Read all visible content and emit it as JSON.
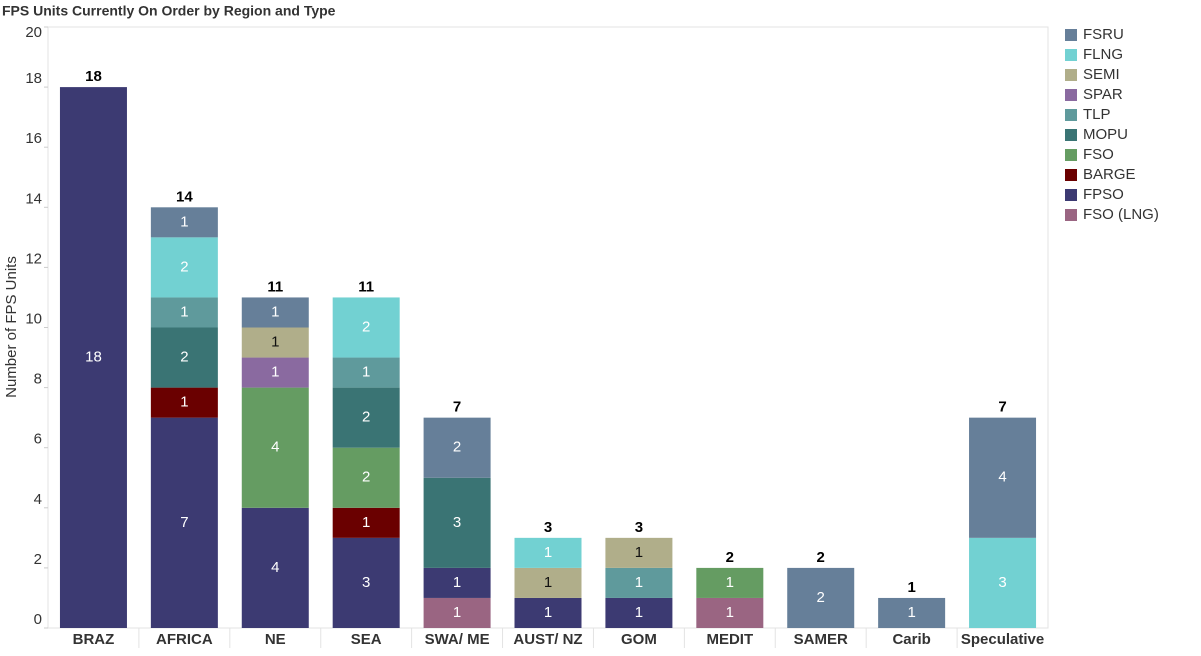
{
  "chart_data": {
    "type": "stacked_bar",
    "title": "FPS Units Currently On Order by Region and Type",
    "y_label": "Number of FPS Units",
    "categories": [
      "BRAZ",
      "AFRICA",
      "NE",
      "SEA",
      "SWA/ ME",
      "AUST/ NZ",
      "GOM",
      "MEDIT",
      "SAMER",
      "Carib",
      "Speculative"
    ],
    "series": [
      {
        "name": "FSRU",
        "color": "#667f99",
        "values": [
          null,
          1,
          1,
          null,
          2,
          null,
          null,
          null,
          2,
          1,
          4
        ]
      },
      {
        "name": "FLNG",
        "color": "#72d1d2",
        "values": [
          null,
          2,
          null,
          2,
          null,
          1,
          null,
          null,
          null,
          null,
          3
        ]
      },
      {
        "name": "SEMI",
        "color": "#b0ae8a",
        "values": [
          null,
          null,
          1,
          null,
          null,
          1,
          1,
          null,
          null,
          null,
          null
        ]
      },
      {
        "name": "SPAR",
        "color": "#8a6aa0",
        "values": [
          null,
          null,
          1,
          null,
          null,
          null,
          null,
          null,
          null,
          null,
          null
        ]
      },
      {
        "name": "TLP",
        "color": "#5f9a9c",
        "values": [
          null,
          1,
          null,
          1,
          null,
          null,
          1,
          null,
          null,
          null,
          null
        ]
      },
      {
        "name": "MOPU",
        "color": "#3a7474",
        "values": [
          null,
          2,
          null,
          2,
          3,
          null,
          null,
          null,
          null,
          null,
          null
        ]
      },
      {
        "name": "FSO",
        "color": "#659c62",
        "values": [
          null,
          null,
          4,
          2,
          null,
          null,
          null,
          1,
          null,
          null,
          null
        ]
      },
      {
        "name": "BARGE",
        "color": "#6a0000",
        "values": [
          null,
          1,
          null,
          1,
          null,
          null,
          null,
          null,
          null,
          null,
          null
        ]
      },
      {
        "name": "FPSO",
        "color": "#3c3a72",
        "values": [
          18,
          7,
          4,
          3,
          1,
          1,
          1,
          null,
          null,
          null,
          null
        ]
      },
      {
        "name": "FSO (LNG)",
        "color": "#9a6582",
        "values": [
          null,
          null,
          null,
          null,
          1,
          null,
          null,
          1,
          null,
          null,
          null
        ]
      }
    ],
    "totals": [
      18,
      14,
      11,
      11,
      7,
      3,
      3,
      2,
      2,
      1,
      7
    ],
    "ylim": [
      0,
      20
    ],
    "yticks": [
      0,
      2,
      4,
      6,
      8,
      10,
      12,
      14,
      16,
      18,
      20
    ],
    "grid": false,
    "legend": "right"
  }
}
